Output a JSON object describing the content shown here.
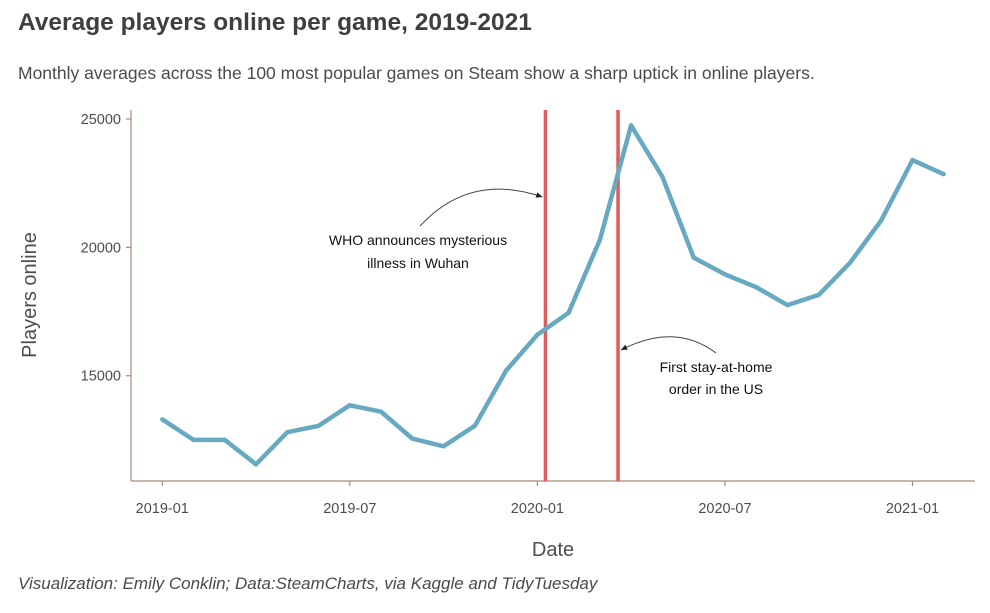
{
  "chart_data": {
    "type": "line",
    "title": "Average players online per game, 2019-2021",
    "subtitle": "Monthly averages across the 100 most popular games on Steam show a sharp uptick in online players.",
    "caption": "Visualization: Emily Conklin; Data:SteamCharts, via Kaggle and TidyTuesday",
    "xlabel": "Date",
    "ylabel": "Players online",
    "x_ticks": [
      "2019-01",
      "2019-07",
      "2020-01",
      "2020-07",
      "2021-01"
    ],
    "y_ticks": [
      15000,
      20000,
      25000
    ],
    "ylim": [
      10900,
      25350
    ],
    "xlim": [
      "2018-12",
      "2021-03"
    ],
    "grid": false,
    "series": [
      {
        "color": "#66a9c0",
        "x": [
          "2019-01",
          "2019-02",
          "2019-03",
          "2019-04",
          "2019-05",
          "2019-06",
          "2019-07",
          "2019-08",
          "2019-09",
          "2019-10",
          "2019-11",
          "2019-12",
          "2020-01",
          "2020-02",
          "2020-03",
          "2020-04",
          "2020-05",
          "2020-06",
          "2020-07",
          "2020-08",
          "2020-09",
          "2020-10",
          "2020-11",
          "2020-12",
          "2021-01",
          "2021-02"
        ],
        "y": [
          13300,
          12500,
          12500,
          11550,
          12800,
          13050,
          13850,
          13600,
          12550,
          12250,
          13050,
          15200,
          16600,
          17450,
          20300,
          24750,
          22750,
          19600,
          18950,
          18450,
          17750,
          18150,
          19400,
          21050,
          23400,
          22850
        ]
      }
    ],
    "events": [
      {
        "date": "2020-01-09",
        "label_lines": [
          "WHO announces mysterious",
          "illness in Wuhan"
        ],
        "color": "#e05c5c"
      },
      {
        "date": "2020-03-19",
        "label_lines": [
          "First stay-at-home",
          "order in the US"
        ],
        "color": "#e05c5c"
      }
    ]
  }
}
